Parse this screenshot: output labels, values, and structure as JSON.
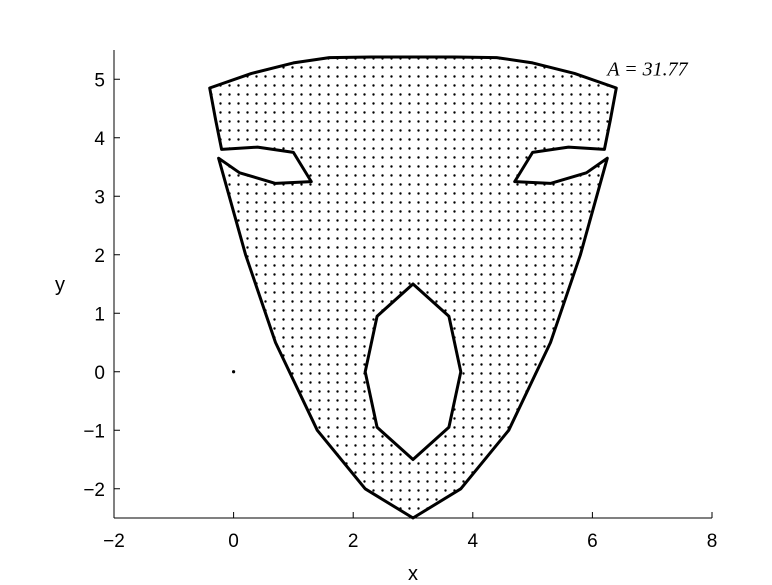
{
  "chart_data": {
    "type": "area",
    "title": "",
    "xlabel": "x",
    "ylabel": "y",
    "xlim": [
      -2,
      8
    ],
    "ylim": [
      -2.5,
      5.5
    ],
    "x_ticks": [
      -2,
      0,
      2,
      4,
      6,
      8
    ],
    "y_ticks": [
      -2,
      -1,
      0,
      1,
      2,
      3,
      4,
      5
    ],
    "x_tick_labels": [
      "−2",
      "0",
      "2",
      "4",
      "6",
      "8"
    ],
    "y_tick_labels": [
      "−2",
      "−1",
      "0",
      "1",
      "2",
      "3",
      "4",
      "5"
    ],
    "grid": false,
    "fill_pattern": "dots",
    "annotation": {
      "text": "A = 31.77",
      "x": 6.35,
      "y": 5.05
    },
    "region": {
      "outer_boundary": [
        [
          -0.4,
          4.85
        ],
        [
          0.3,
          5.1
        ],
        [
          1.0,
          5.28
        ],
        [
          1.6,
          5.37
        ],
        [
          2.3,
          5.38
        ],
        [
          3.0,
          5.38
        ],
        [
          3.7,
          5.38
        ],
        [
          4.4,
          5.37
        ],
        [
          5.0,
          5.28
        ],
        [
          5.7,
          5.1
        ],
        [
          6.4,
          4.85
        ],
        [
          6.3,
          4.3
        ],
        [
          6.2,
          3.8
        ],
        [
          5.6,
          3.84
        ],
        [
          5.0,
          3.75
        ],
        [
          4.7,
          3.25
        ],
        [
          5.3,
          3.22
        ],
        [
          5.9,
          3.4
        ],
        [
          6.25,
          3.65
        ],
        [
          5.8,
          2.0
        ],
        [
          5.3,
          0.5
        ],
        [
          4.6,
          -1.0
        ],
        [
          3.8,
          -2.0
        ],
        [
          3.0,
          -2.5
        ],
        [
          2.2,
          -2.0
        ],
        [
          1.4,
          -1.0
        ],
        [
          0.7,
          0.5
        ],
        [
          0.2,
          2.0
        ],
        [
          -0.25,
          3.65
        ],
        [
          0.1,
          3.4
        ],
        [
          0.7,
          3.22
        ],
        [
          1.3,
          3.25
        ],
        [
          1.0,
          3.75
        ],
        [
          0.4,
          3.84
        ],
        [
          -0.2,
          3.8
        ],
        [
          -0.3,
          4.3
        ],
        [
          -0.4,
          4.85
        ]
      ],
      "holes": [
        [
          [
            3.0,
            1.5
          ],
          [
            3.6,
            0.95
          ],
          [
            3.8,
            0.0
          ],
          [
            3.6,
            -0.95
          ],
          [
            3.0,
            -1.5
          ],
          [
            2.4,
            -0.95
          ],
          [
            2.2,
            0.0
          ],
          [
            2.4,
            0.95
          ],
          [
            3.0,
            1.5
          ]
        ]
      ]
    },
    "isolated_points": [
      [
        0.0,
        0.0
      ]
    ]
  }
}
